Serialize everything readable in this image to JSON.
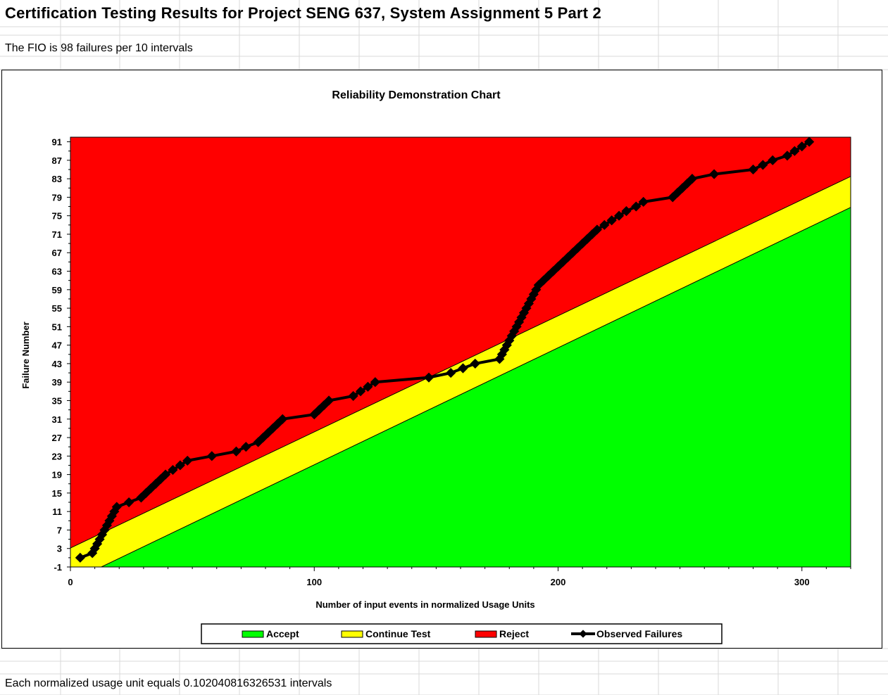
{
  "sheet": {
    "title": "Certification Testing Results for Project SENG 637, System Assignment 5 Part 2",
    "subtitle": "The FIO is 98 failures per 10 intervals",
    "footer": "Each normalized usage unit equals 0.102040816326531 intervals"
  },
  "colors": {
    "accept": "#00ff00",
    "continue": "#ffff00",
    "reject": "#ff0000",
    "observed": "#000000"
  },
  "chart_data": {
    "type": "line",
    "title": "Reliability Demonstration Chart",
    "xlabel": "Number of input events in normalized Usage Units",
    "ylabel": "Failure Number",
    "xlim": [
      0,
      320
    ],
    "ylim": [
      -1,
      92
    ],
    "x_ticks": [
      0,
      100,
      200,
      300
    ],
    "y_ticks": [
      -1,
      3,
      7,
      11,
      15,
      19,
      23,
      27,
      31,
      35,
      39,
      43,
      47,
      51,
      55,
      59,
      63,
      67,
      71,
      75,
      79,
      83,
      87,
      91
    ],
    "grid": false,
    "legend_position": "bottom",
    "regions": {
      "accept_boundary": [
        [
          0,
          -4.2
        ],
        [
          320,
          76.8
        ]
      ],
      "reject_boundary": [
        [
          0,
          3.1
        ],
        [
          320,
          83.5
        ]
      ]
    },
    "legend": [
      "Accept",
      "Continue Test",
      "Reject",
      "Observed Failures"
    ],
    "series": [
      {
        "name": "Observed Failures",
        "x": [
          4,
          9,
          10,
          11,
          12,
          13,
          14,
          15,
          16,
          17,
          18,
          19,
          24,
          29,
          31,
          33,
          35,
          37,
          39,
          42,
          45,
          48,
          58,
          68,
          72,
          77,
          79,
          81,
          83,
          85,
          87,
          100,
          102,
          104,
          106,
          116,
          119,
          122,
          125,
          147,
          156,
          161,
          166,
          176,
          177,
          178,
          179,
          180,
          181,
          182,
          183,
          184,
          185,
          186,
          187,
          188,
          189,
          190,
          191,
          192,
          194,
          196,
          198,
          200,
          202,
          204,
          206,
          208,
          210,
          212,
          214,
          216,
          219,
          222,
          225,
          228,
          232,
          235,
          247,
          249,
          251,
          253,
          255,
          264,
          280,
          284,
          288,
          294,
          297,
          300,
          303
        ],
        "y": [
          1,
          2,
          3,
          4,
          5,
          6,
          7,
          8,
          9,
          10,
          11,
          12,
          13,
          14,
          15,
          16,
          17,
          18,
          19,
          20,
          21,
          22,
          23,
          24,
          25,
          26,
          27,
          28,
          29,
          30,
          31,
          32,
          33,
          34,
          35,
          36,
          37,
          38,
          39,
          40,
          41,
          42,
          43,
          44,
          45,
          46,
          47,
          48,
          49,
          50,
          51,
          52,
          53,
          54,
          55,
          56,
          57,
          58,
          59,
          60,
          61,
          62,
          63,
          64,
          65,
          66,
          67,
          68,
          69,
          70,
          71,
          72,
          73,
          74,
          75,
          76,
          77,
          78,
          79,
          80,
          81,
          82,
          83,
          84,
          85,
          86,
          87,
          88,
          89,
          90,
          91
        ]
      }
    ]
  }
}
